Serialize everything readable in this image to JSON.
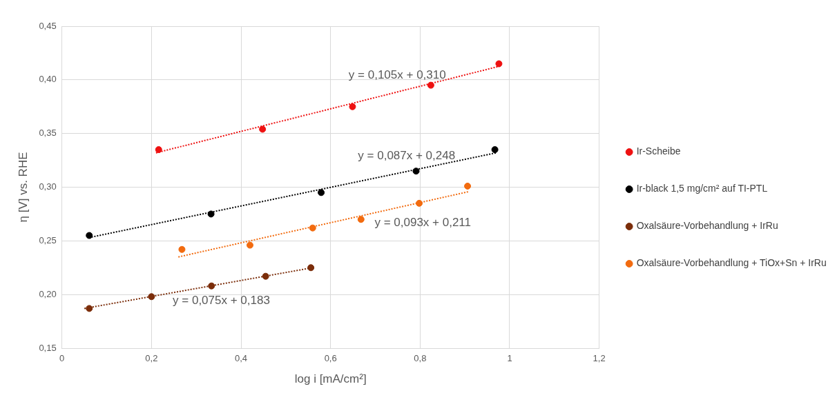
{
  "chart_data": {
    "type": "scatter",
    "xlabel": "log i [mA/cm²]",
    "ylabel": "η [V] vs. RHE",
    "xlim": [
      0,
      1.2
    ],
    "xticks": [
      0,
      {
        "value": 0.2,
        "label": "0,2"
      },
      {
        "value": 0.4,
        "label": "0,4"
      },
      {
        "value": 0.6,
        "label": "0,6"
      },
      {
        "value": 0.8,
        "label": "0,8"
      },
      1,
      {
        "value": 1.2,
        "label": "1,2"
      }
    ],
    "ylim": [
      0.15,
      0.45
    ],
    "yticks": [
      {
        "value": 0.15,
        "label": "0,15"
      },
      {
        "value": 0.2,
        "label": "0,20"
      },
      {
        "value": 0.25,
        "label": "0,25"
      },
      {
        "value": 0.3,
        "label": "0,30"
      },
      {
        "value": 0.35,
        "label": "0,35"
      },
      {
        "value": 0.4,
        "label": "0,40"
      },
      {
        "value": 0.45,
        "label": "0,45"
      }
    ],
    "grid": true,
    "legend": "right",
    "marker": "circle",
    "series": [
      {
        "name": "Ir-Scheibe",
        "color": "#ee1111",
        "x": [
          0.216,
          0.448,
          0.649,
          0.824,
          0.976
        ],
        "values": [
          0.335,
          0.354,
          0.375,
          0.395,
          0.415
        ]
      },
      {
        "name": "Ir-black 1,5 mg/cm² auf TI-PTL",
        "color": "#000000",
        "x": [
          0.061,
          0.333,
          0.579,
          0.791,
          0.967
        ],
        "values": [
          0.255,
          0.275,
          0.295,
          0.315,
          0.335
        ]
      },
      {
        "name": "Oxalsäure-Vorbehandlung + IrRu",
        "color": "#7b2d0a",
        "x": [
          0.061,
          0.2,
          0.334,
          0.455,
          0.556
        ],
        "values": [
          0.187,
          0.198,
          0.208,
          0.217,
          0.225
        ]
      },
      {
        "name": "Oxalsäure-Vorbehandlung + TiOx+Sn + IrRu",
        "color": "#f26b0f",
        "x": [
          0.268,
          0.42,
          0.56,
          0.668,
          0.798,
          0.906
        ],
        "values": [
          0.242,
          0.246,
          0.262,
          0.27,
          0.285,
          0.301
        ]
      },
      {
        "type": "line",
        "line_style": "dotted",
        "marker": "none",
        "color": "#ee1111",
        "x": [
          0.21,
          0.98
        ],
        "values": [
          0.332,
          0.413
        ]
      },
      {
        "type": "line",
        "line_style": "dotted",
        "marker": "none",
        "color": "#000000",
        "x": [
          0.06,
          0.97
        ],
        "values": [
          0.253,
          0.332
        ]
      },
      {
        "type": "line",
        "line_style": "dotted",
        "marker": "none",
        "color": "#7b2d0a",
        "x": [
          0.05,
          0.56
        ],
        "values": [
          0.187,
          0.225
        ]
      },
      {
        "type": "line",
        "line_style": "dotted",
        "marker": "none",
        "color": "#f26b0f",
        "x": [
          0.26,
          0.91
        ],
        "values": [
          0.235,
          0.296
        ]
      }
    ],
    "annotations": [
      "y = 0,105x + 0,310",
      "y = 0,087x + 0,248",
      "y = 0,075x + 0,183",
      "y = 0,093x + 0,211"
    ]
  }
}
